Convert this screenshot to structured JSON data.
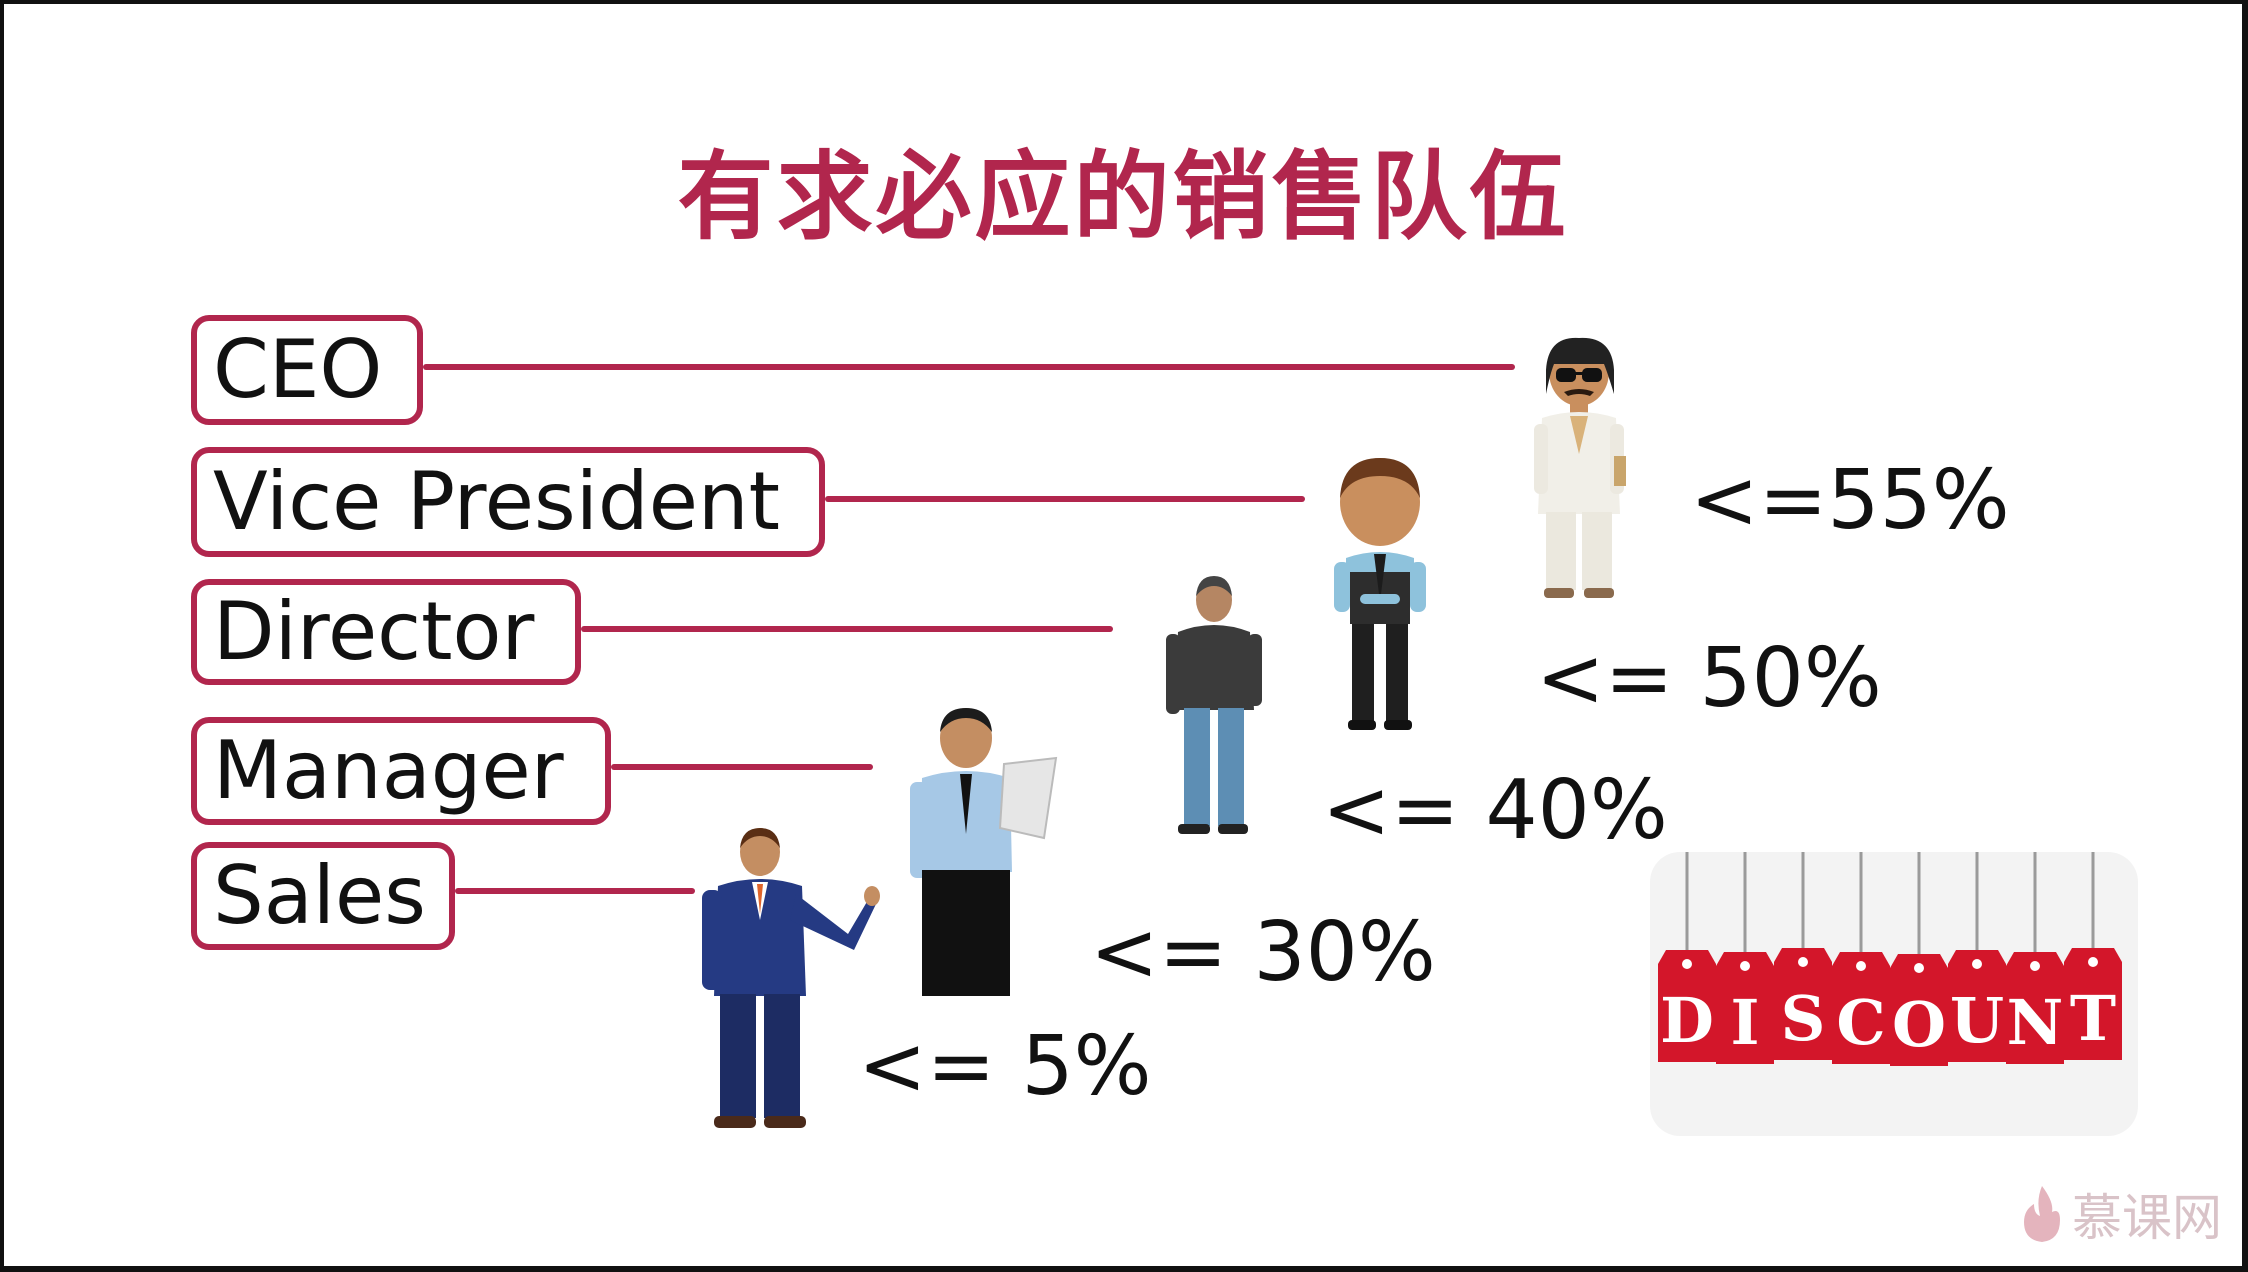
{
  "title": "有求必应的销售队伍",
  "roles": [
    {
      "label": "CEO",
      "discount": "<=55%"
    },
    {
      "label": "Vice President",
      "discount": "<= 50%"
    },
    {
      "label": "Director",
      "discount": "<= 40%"
    },
    {
      "label": "Manager",
      "discount": "<= 30%"
    },
    {
      "label": "Sales",
      "discount": "<= 5%"
    }
  ],
  "discount_tags": [
    "D",
    "I",
    "S",
    "C",
    "O",
    "U",
    "N",
    "T"
  ],
  "watermark": "慕课网",
  "colors": {
    "accent": "#b1264d",
    "tag_red": "#d3162a",
    "text": "#111111",
    "watermark": "#d9c3c8"
  },
  "icons": [
    "ceo-person-icon",
    "vice-president-person-icon",
    "director-person-icon",
    "manager-person-icon",
    "sales-person-icon",
    "discount-tags-icon",
    "flame-logo-icon"
  ]
}
